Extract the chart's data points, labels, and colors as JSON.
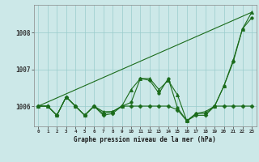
{
  "xlabel": "Graphe pression niveau de la mer (hPa)",
  "xlim": [
    -0.5,
    23.5
  ],
  "ylim": [
    1005.45,
    1008.75
  ],
  "yticks": [
    1006,
    1007,
    1008
  ],
  "xticks": [
    0,
    1,
    2,
    3,
    4,
    5,
    6,
    7,
    8,
    9,
    10,
    11,
    12,
    13,
    14,
    15,
    16,
    17,
    18,
    19,
    20,
    21,
    22,
    23
  ],
  "bg_color": "#cce8e8",
  "grid_color": "#99cccc",
  "line_color": "#1a6b1a",
  "series": [
    {
      "x": [
        0,
        1,
        2,
        3,
        4,
        5,
        6,
        7,
        8,
        9,
        10,
        11,
        12,
        13,
        14,
        15,
        16,
        17,
        18,
        19,
        20,
        21,
        22,
        23
      ],
      "y": [
        1006.0,
        1006.0,
        1005.75,
        1006.25,
        1006.0,
        1005.75,
        1006.0,
        1005.75,
        1005.8,
        1006.0,
        1006.0,
        1006.0,
        1006.0,
        1006.0,
        1006.0,
        1005.9,
        1005.6,
        1005.75,
        1005.75,
        1006.0,
        1006.0,
        1006.0,
        1006.0,
        1006.0
      ],
      "marker": "D",
      "markersize": 2.5,
      "lw": 0.8
    },
    {
      "x": [
        0,
        23
      ],
      "y": [
        1006.0,
        1008.55
      ],
      "marker": null,
      "markersize": 0,
      "lw": 0.8
    },
    {
      "x": [
        0,
        1,
        2,
        3,
        4,
        5,
        6,
        7,
        8,
        9,
        10,
        11,
        12,
        13,
        14,
        15,
        16,
        17,
        18,
        19,
        20,
        21,
        22,
        23
      ],
      "y": [
        1006.0,
        1006.0,
        1005.75,
        1006.25,
        1006.0,
        1005.75,
        1006.0,
        1005.85,
        1005.85,
        1006.0,
        1006.45,
        1006.75,
        1006.75,
        1006.45,
        1006.7,
        1006.3,
        1005.6,
        1005.8,
        1005.85,
        1006.0,
        1006.55,
        1007.25,
        1008.1,
        1008.55
      ],
      "marker": "^",
      "markersize": 3.0,
      "lw": 0.8
    },
    {
      "x": [
        0,
        1,
        2,
        3,
        4,
        5,
        6,
        7,
        8,
        9,
        10,
        11,
        12,
        13,
        14,
        15,
        16,
        17,
        18,
        19,
        20,
        21,
        22,
        23
      ],
      "y": [
        1006.0,
        1006.0,
        1005.75,
        1006.25,
        1006.0,
        1005.75,
        1006.0,
        1005.8,
        1005.85,
        1006.0,
        1006.1,
        1006.75,
        1006.7,
        1006.35,
        1006.75,
        1005.95,
        1005.6,
        1005.8,
        1005.8,
        1006.0,
        1006.55,
        1007.2,
        1008.1,
        1008.4
      ],
      "marker": "o",
      "markersize": 2.5,
      "lw": 0.8
    }
  ]
}
